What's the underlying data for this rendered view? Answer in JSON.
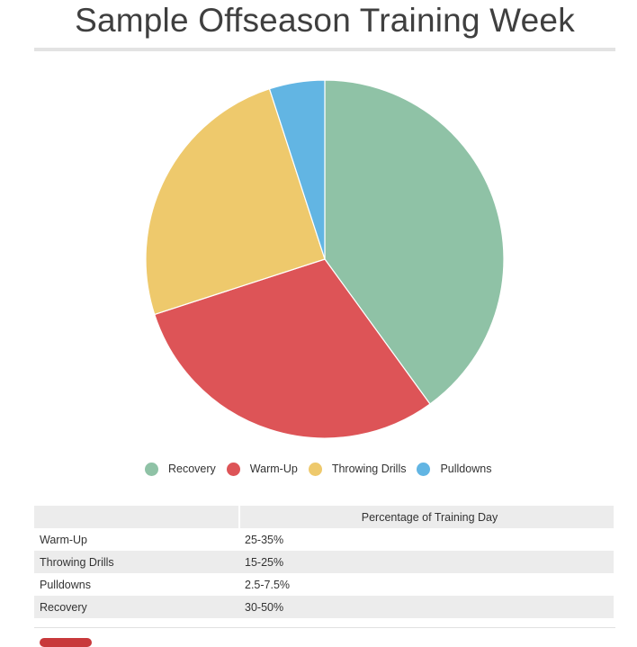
{
  "page": {
    "title": "Sample Offseason Training Week"
  },
  "colors": {
    "Recovery": "#8fc2a6",
    "Warm-Up": "#dd5457",
    "Throwing Drills": "#eec96c",
    "Pulldowns": "#62b5e3",
    "bottom_button": "#c8393b"
  },
  "chart_data": {
    "type": "pie",
    "title": "",
    "slices": [
      {
        "label": "Recovery",
        "value": 40
      },
      {
        "label": "Warm-Up",
        "value": 30
      },
      {
        "label": "Throwing Drills",
        "value": 25
      },
      {
        "label": "Pulldowns",
        "value": 5
      }
    ],
    "legend_position": "bottom"
  },
  "legend": [
    "Recovery",
    "Warm-Up",
    "Throwing Drills",
    "Pulldowns"
  ],
  "table": {
    "headers": [
      "",
      "Percentage of Training Day"
    ],
    "rows": [
      [
        "Warm-Up",
        "25-35%"
      ],
      [
        "Throwing Drills",
        "15-25%"
      ],
      [
        "Pulldowns",
        "2.5-7.5%"
      ],
      [
        "Recovery",
        "30-50%"
      ]
    ]
  }
}
